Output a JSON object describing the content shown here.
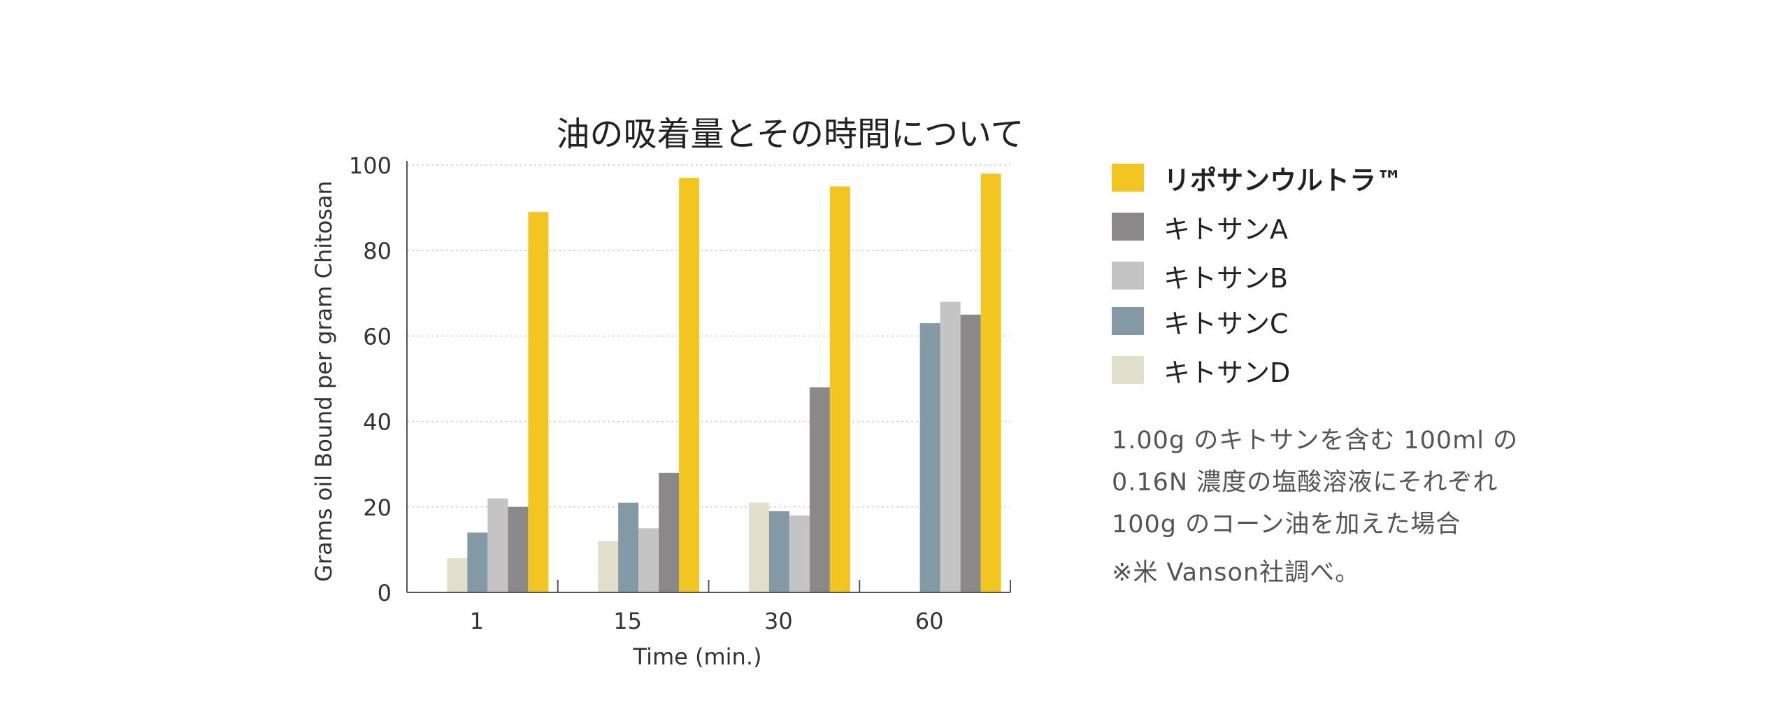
{
  "chart_data": {
    "type": "bar",
    "title": "油の吸着量とその時間について",
    "xlabel": "Time (min.)",
    "ylabel": "Grams oil Bound per gram Chitosan",
    "categories": [
      "1",
      "15",
      "30",
      "60"
    ],
    "yticks": [
      "0",
      "20",
      "40",
      "60",
      "80",
      "100"
    ],
    "ylim": [
      0,
      100
    ],
    "grid": true,
    "legend_position": "right",
    "series": [
      {
        "name": "キトサンD",
        "color": "#e2dfcc",
        "values": [
          8,
          12,
          21,
          0
        ]
      },
      {
        "name": "キトサンC",
        "color": "#8499a6",
        "values": [
          14,
          21,
          19,
          63
        ]
      },
      {
        "name": "キトサンB",
        "color": "#c4c4c4",
        "values": [
          22,
          15,
          18,
          68
        ]
      },
      {
        "name": "キトサンA",
        "color": "#8a8888",
        "values": [
          20,
          28,
          48,
          65
        ]
      },
      {
        "name": "リポサンウルトラ™",
        "color": "#f2c520",
        "values": [
          89,
          97,
          95,
          98
        ]
      }
    ],
    "legend_order": [
      "リポサンウルトラ™",
      "キトサンA",
      "キトサンB",
      "キトサンC",
      "キトサンD"
    ]
  },
  "note": {
    "lines": [
      "1.00g のキトサンを含む 100ml の",
      "0.16N 濃度の塩酸溶液にそれぞれ",
      "100g のコーン油を加えた場合"
    ]
  },
  "source": "※米 Vanson社調べ。"
}
